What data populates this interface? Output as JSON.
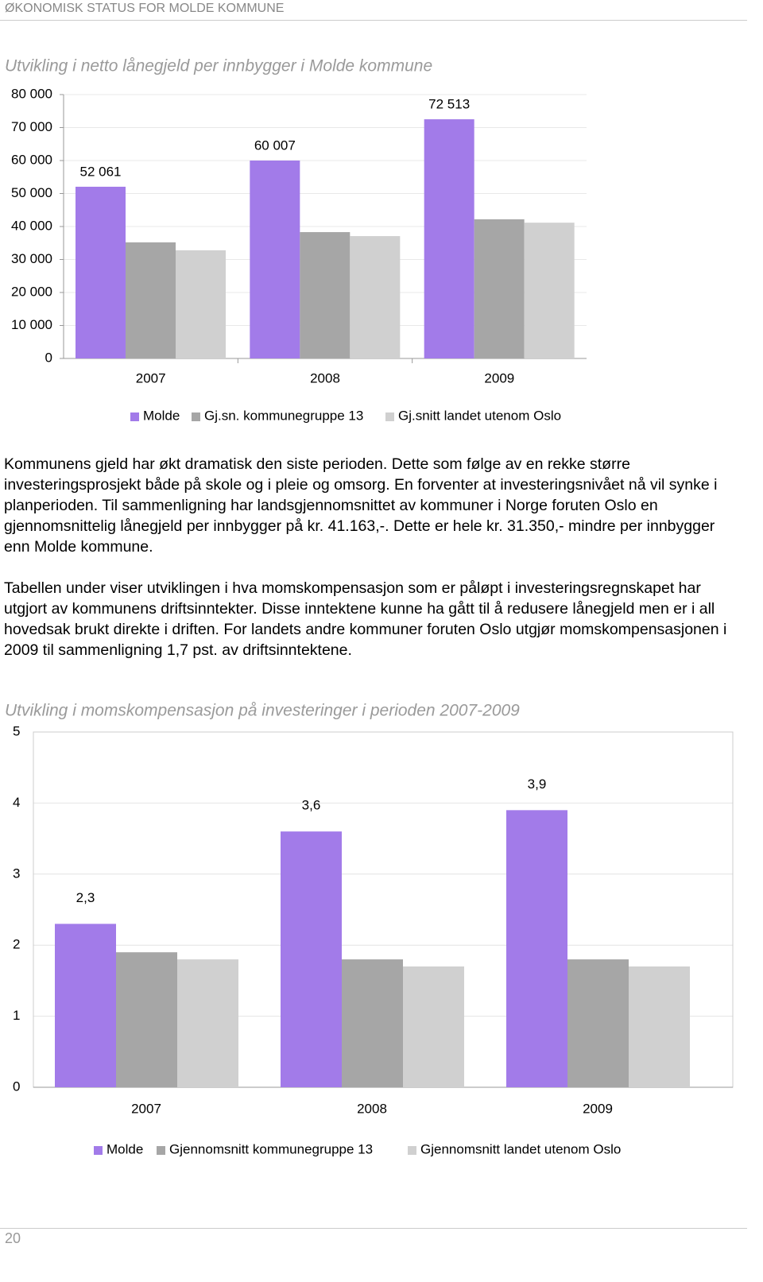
{
  "header": "ØKONOMISK STATUS FOR MOLDE KOMMUNE",
  "chart_data": [
    {
      "type": "bar",
      "title": "Utvikling i netto lånegjeld per innbygger i Molde kommune",
      "categories": [
        "2007",
        "2008",
        "2009"
      ],
      "series": [
        {
          "name": "Molde",
          "color": "#a27be9",
          "values": [
            52061,
            60007,
            72513
          ],
          "value_labels": [
            "52 061",
            "60 007",
            "72 513"
          ]
        },
        {
          "name": "Gj.sn. kommunegruppe 13",
          "color": "#a6a6a6",
          "values": [
            35200,
            38300,
            42200
          ]
        },
        {
          "name": "Gj.snitt landet utenom Oslo",
          "color": "#d0d0d0",
          "values": [
            32800,
            37100,
            41163
          ]
        }
      ],
      "ylim": [
        0,
        80000
      ],
      "yticks": [
        0,
        {
          "value": 10000,
          "label": "10 000"
        },
        {
          "value": 20000,
          "label": "20 000"
        },
        {
          "value": 30000,
          "label": "30 000"
        },
        {
          "value": 40000,
          "label": "40 000"
        },
        {
          "value": 50000,
          "label": "50 000"
        },
        {
          "value": 60000,
          "label": "60 000"
        },
        {
          "value": 70000,
          "label": "70 000"
        },
        {
          "value": 80000,
          "label": "80 000"
        }
      ],
      "grid": true
    },
    {
      "type": "bar",
      "title": "Utvikling i momskompensasjon på investeringer i perioden 2007-2009",
      "categories": [
        "2007",
        "2008",
        "2009"
      ],
      "series": [
        {
          "name": "Molde",
          "color": "#a27be9",
          "values": [
            2.3,
            3.6,
            3.9
          ],
          "value_labels": [
            "2,3",
            "3,6",
            "3,9"
          ]
        },
        {
          "name": "Gjennomsnitt kommunegruppe 13",
          "color": "#a6a6a6",
          "values": [
            1.9,
            1.8,
            1.8
          ]
        },
        {
          "name": "Gjennomsnitt landet utenom Oslo",
          "color": "#d0d0d0",
          "values": [
            1.8,
            1.7,
            1.7
          ]
        }
      ],
      "ylim": [
        0,
        5
      ],
      "yticks": [
        0,
        1,
        2,
        3,
        4,
        5
      ],
      "grid": true
    }
  ],
  "paragraphs": [
    "Kommunens gjeld har økt dramatisk den siste perioden. Dette som følge av en rekke større investeringsprosjekt både på skole og i pleie og omsorg. En forventer at investeringsnivået nå vil synke i planperioden. Til sammenligning har landsgjennomsnittet av kommuner i Norge foruten Oslo en gjennomsnittelig lånegjeld per innbygger på kr. 41.163,-. Dette er hele kr. 31.350,- mindre per innbygger enn Molde kommune.",
    "Tabellen under viser utviklingen i hva momskompensasjon som er påløpt i investeringsregnskapet har utgjort av kommunens driftsinntekter. Disse inntektene kunne ha gått til å redusere lånegjeld men er i all hovedsak brukt direkte i driften. For landets andre kommuner foruten Oslo utgjør momskompensasjonen i 2009 til sammenligning 1,7 pst. av driftsinntektene."
  ],
  "page_number": "20"
}
